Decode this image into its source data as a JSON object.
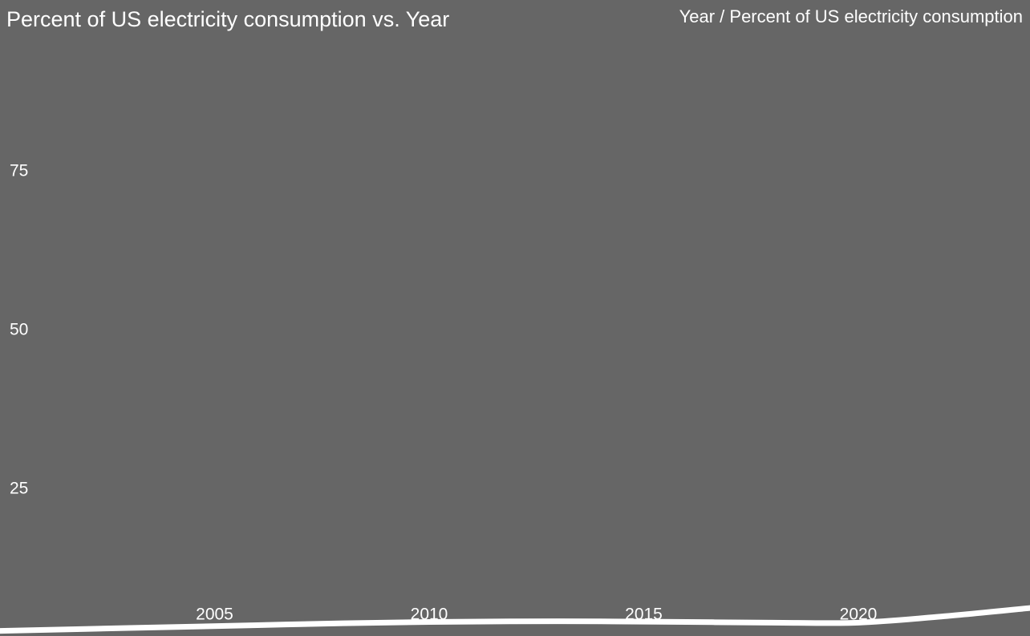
{
  "chart_data": {
    "type": "line",
    "title": "Percent of US electricity consumption vs. Year",
    "subtitle": "Year / Percent of US electricity consumption",
    "x": [
      2000,
      2002,
      2004,
      2006,
      2008,
      2010,
      2012,
      2014,
      2016,
      2018,
      2020,
      2022,
      2024
    ],
    "series": [
      {
        "name": "Percent of US electricity consumption",
        "color": "#ffffff",
        "values": [
          2.7,
          3.0,
          3.3,
          3.6,
          3.9,
          4.1,
          4.2,
          4.2,
          4.1,
          4.0,
          4.0,
          5.0,
          6.3
        ]
      }
    ],
    "xlim": [
      2000,
      2024
    ],
    "xticks": [
      2005,
      2010,
      2015,
      2020
    ],
    "ylim": [
      0,
      100
    ],
    "yticks": [
      25,
      50,
      75
    ],
    "background": "#666666",
    "grid": false
  }
}
